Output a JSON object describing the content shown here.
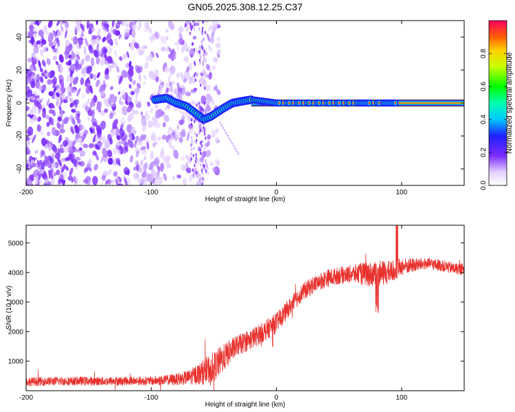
{
  "chart_data": [
    {
      "type": "heatmap",
      "title": "GN05.2025.308.12.25.C37",
      "xlabel": "Height of straight line (km)",
      "ylabel": "Frequency (Hz)",
      "xlim": [
        -200,
        150
      ],
      "ylim": [
        -50,
        50
      ],
      "x_ticks": [
        -200,
        -100,
        0,
        100
      ],
      "y_ticks": [
        -40,
        -20,
        0,
        20,
        40
      ],
      "colorbar": {
        "label": "Normalized spectral amplitude",
        "range": [
          0,
          1
        ],
        "ticks": [
          0.0,
          0.2,
          0.4,
          0.6,
          0.8
        ],
        "tick_labels": [
          "0.0",
          "0.2",
          "0.4",
          "0.6",
          "0.8"
        ]
      },
      "trace": {
        "description_points_km_hz": [
          [
            -97,
            2
          ],
          [
            -88,
            3
          ],
          [
            -80,
            0
          ],
          [
            -72,
            -2
          ],
          [
            -65,
            -6
          ],
          [
            -58,
            -10
          ],
          [
            -52,
            -8
          ],
          [
            -48,
            -6
          ],
          [
            -42,
            -3
          ],
          [
            -35,
            0
          ],
          [
            -28,
            1
          ],
          [
            -20,
            2
          ],
          [
            -10,
            1
          ],
          [
            0,
            0
          ],
          [
            20,
            0
          ],
          [
            70,
            0
          ],
          [
            100,
            0
          ],
          [
            150,
            0
          ]
        ],
        "noise_region_km": [
          -200,
          -45
        ]
      }
    },
    {
      "type": "line",
      "xlabel": "Height of straight line (km)",
      "ylabel": "SNR (10 * v/v)",
      "xlim": [
        -200,
        150
      ],
      "ylim": [
        0,
        5600
      ],
      "x_ticks": [
        -200,
        -100,
        0,
        100
      ],
      "y_ticks": [
        1000,
        2000,
        3000,
        4000,
        5000
      ],
      "series": [
        {
          "name": "SNR",
          "color": "#e8302c",
          "x": [
            -200,
            -180,
            -160,
            -140,
            -120,
            -100,
            -80,
            -70,
            -60,
            -55,
            -50,
            -45,
            -40,
            -35,
            -30,
            -20,
            -10,
            0,
            10,
            20,
            30,
            40,
            50,
            60,
            70,
            80,
            90,
            100,
            110,
            120,
            130,
            140,
            150
          ],
          "values": [
            300,
            320,
            330,
            320,
            330,
            330,
            380,
            450,
            600,
            700,
            800,
            1000,
            1200,
            1400,
            1550,
            1750,
            2000,
            2300,
            2800,
            3300,
            3600,
            3800,
            3900,
            3950,
            3950,
            3950,
            4000,
            4200,
            4250,
            4300,
            4250,
            4150,
            4100
          ],
          "noise_amplitude": [
            150,
            150,
            150,
            150,
            150,
            150,
            200,
            250,
            400,
            500,
            500,
            500,
            450,
            400,
            350,
            350,
            350,
            350,
            300,
            300,
            300,
            300,
            300,
            300,
            400,
            450,
            400,
            300,
            250,
            200,
            200,
            200,
            200
          ]
        }
      ]
    }
  ],
  "colors": {
    "axis": "#000000",
    "background": "#ffffff",
    "line": "#e8302c",
    "noise_purple": "#7b2cff",
    "trace_ridge": "#e8302c"
  }
}
